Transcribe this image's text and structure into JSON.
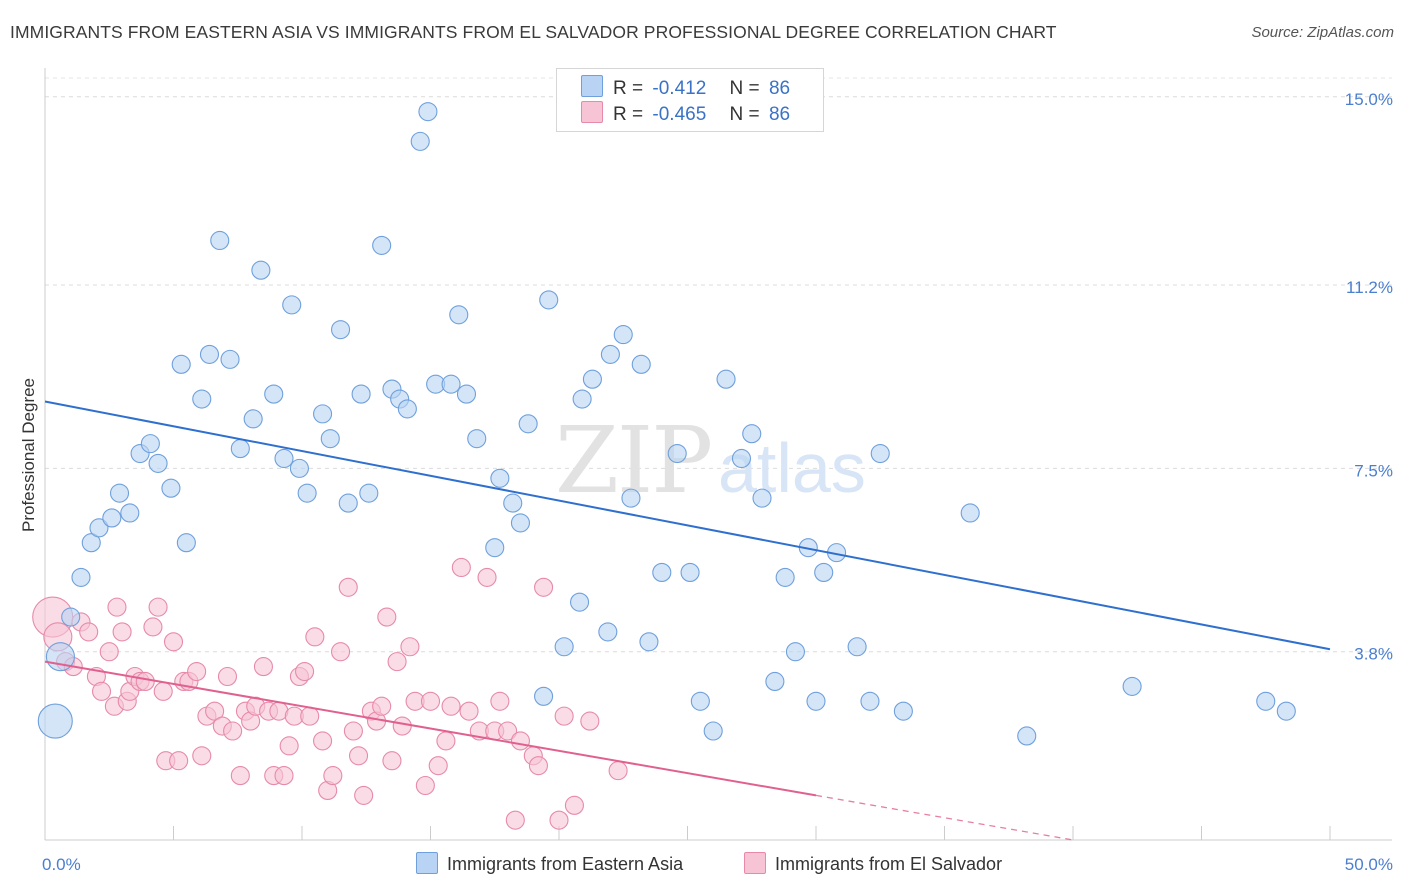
{
  "header": {
    "title": "IMMIGRANTS FROM EASTERN ASIA VS IMMIGRANTS FROM EL SALVADOR PROFESSIONAL DEGREE CORRELATION CHART",
    "source": "Source: ZipAtlas.com"
  },
  "watermark": {
    "text_zip": "ZIP",
    "text_atlas": "atlas"
  },
  "colors": {
    "blue_fill": "#b8d3f4",
    "blue_stroke": "#6fa0dc",
    "blue_line": "#2f6fce",
    "pink_fill": "#f7c4d5",
    "pink_stroke": "#e78aaa",
    "pink_line": "#e0608f"
  },
  "legend": {
    "rows": [
      {
        "r_label": "R =",
        "r_value": "-0.412",
        "n_label": "N =",
        "n_value": "86"
      },
      {
        "r_label": "R =",
        "r_value": "-0.465",
        "n_label": "N =",
        "n_value": "86"
      }
    ],
    "series_names": [
      "Immigrants from Eastern Asia",
      "Immigrants from El Salvador"
    ]
  },
  "chart_data": {
    "type": "scatter",
    "title": "IMMIGRANTS FROM EASTERN ASIA VS IMMIGRANTS FROM EL SALVADOR PROFESSIONAL DEGREE CORRELATION CHART",
    "xlabel": "",
    "ylabel": "Professional Degree",
    "xlim": [
      0,
      50
    ],
    "ylim": [
      0,
      15.5
    ],
    "x_tick_labels": [
      "0.0%",
      "50.0%"
    ],
    "y_ticks": [
      3.8,
      7.5,
      11.2,
      15.0
    ],
    "y_tick_labels": [
      "3.8%",
      "7.5%",
      "11.2%",
      "15.0%"
    ],
    "grid": true,
    "legend_position": "top-center",
    "series": [
      {
        "name": "Immigrants from Eastern Asia",
        "trend": {
          "x": [
            0,
            50
          ],
          "y": [
            8.85,
            3.85
          ]
        },
        "points": [
          [
            0.4,
            2.4
          ],
          [
            1.0,
            4.5
          ],
          [
            0.6,
            3.7
          ],
          [
            1.4,
            5.3
          ],
          [
            1.8,
            6.0
          ],
          [
            2.1,
            6.3
          ],
          [
            2.6,
            6.5
          ],
          [
            2.9,
            7.0
          ],
          [
            3.3,
            6.6
          ],
          [
            3.7,
            7.8
          ],
          [
            4.1,
            8.0
          ],
          [
            4.4,
            7.6
          ],
          [
            4.9,
            7.1
          ],
          [
            5.3,
            9.6
          ],
          [
            5.5,
            6.0
          ],
          [
            6.1,
            8.9
          ],
          [
            6.4,
            9.8
          ],
          [
            6.8,
            12.1
          ],
          [
            7.2,
            9.7
          ],
          [
            7.6,
            7.9
          ],
          [
            8.1,
            8.5
          ],
          [
            8.4,
            11.5
          ],
          [
            8.9,
            9.0
          ],
          [
            9.3,
            7.7
          ],
          [
            9.6,
            10.8
          ],
          [
            9.9,
            7.5
          ],
          [
            10.2,
            7.0
          ],
          [
            10.8,
            8.6
          ],
          [
            11.1,
            8.1
          ],
          [
            11.5,
            10.3
          ],
          [
            11.8,
            6.8
          ],
          [
            12.3,
            9.0
          ],
          [
            12.6,
            7.0
          ],
          [
            13.1,
            12.0
          ],
          [
            13.5,
            9.1
          ],
          [
            13.8,
            8.9
          ],
          [
            14.1,
            8.7
          ],
          [
            14.6,
            14.1
          ],
          [
            14.9,
            14.7
          ],
          [
            15.2,
            9.2
          ],
          [
            15.8,
            9.2
          ],
          [
            16.1,
            10.6
          ],
          [
            16.4,
            9.0
          ],
          [
            16.8,
            8.1
          ],
          [
            17.5,
            5.9
          ],
          [
            17.7,
            7.3
          ],
          [
            18.2,
            6.8
          ],
          [
            18.5,
            6.4
          ],
          [
            18.8,
            8.4
          ],
          [
            19.4,
            2.9
          ],
          [
            19.6,
            10.9
          ],
          [
            20.2,
            3.9
          ],
          [
            20.8,
            4.8
          ],
          [
            20.9,
            8.9
          ],
          [
            21.3,
            9.3
          ],
          [
            21.9,
            4.2
          ],
          [
            22.0,
            9.8
          ],
          [
            22.5,
            10.2
          ],
          [
            22.8,
            6.9
          ],
          [
            23.2,
            9.6
          ],
          [
            23.5,
            4.0
          ],
          [
            24.0,
            5.4
          ],
          [
            24.6,
            7.8
          ],
          [
            25.1,
            5.4
          ],
          [
            25.5,
            2.8
          ],
          [
            26.0,
            2.2
          ],
          [
            26.5,
            9.3
          ],
          [
            27.1,
            7.7
          ],
          [
            27.5,
            8.2
          ],
          [
            27.9,
            6.9
          ],
          [
            28.4,
            3.2
          ],
          [
            28.8,
            5.3
          ],
          [
            29.2,
            3.8
          ],
          [
            29.7,
            5.9
          ],
          [
            30.0,
            2.8
          ],
          [
            30.3,
            5.4
          ],
          [
            30.8,
            5.8
          ],
          [
            31.6,
            3.9
          ],
          [
            32.1,
            2.8
          ],
          [
            32.5,
            7.8
          ],
          [
            33.4,
            2.6
          ],
          [
            36.0,
            6.6
          ],
          [
            38.2,
            2.1
          ],
          [
            42.3,
            3.1
          ],
          [
            47.5,
            2.8
          ],
          [
            48.3,
            2.6
          ]
        ]
      },
      {
        "name": "Immigrants from El Salvador",
        "trend": {
          "x": [
            0,
            30
          ],
          "y": [
            3.6,
            0.9
          ]
        },
        "trend_extension": {
          "x": [
            30,
            40
          ],
          "y": [
            0.9,
            0.0
          ]
        },
        "points": [
          [
            0.3,
            4.5
          ],
          [
            0.5,
            4.1
          ],
          [
            0.8,
            3.6
          ],
          [
            1.1,
            3.5
          ],
          [
            1.4,
            4.4
          ],
          [
            1.7,
            4.2
          ],
          [
            2.0,
            3.3
          ],
          [
            2.2,
            3.0
          ],
          [
            2.5,
            3.8
          ],
          [
            2.7,
            2.7
          ],
          [
            2.8,
            4.7
          ],
          [
            3.0,
            4.2
          ],
          [
            3.2,
            2.8
          ],
          [
            3.3,
            3.0
          ],
          [
            3.5,
            3.3
          ],
          [
            3.7,
            3.2
          ],
          [
            3.9,
            3.2
          ],
          [
            4.2,
            4.3
          ],
          [
            4.4,
            4.7
          ],
          [
            4.6,
            3.0
          ],
          [
            4.7,
            1.6
          ],
          [
            5.0,
            4.0
          ],
          [
            5.2,
            1.6
          ],
          [
            5.4,
            3.2
          ],
          [
            5.6,
            3.2
          ],
          [
            5.9,
            3.4
          ],
          [
            6.1,
            1.7
          ],
          [
            6.3,
            2.5
          ],
          [
            6.6,
            2.6
          ],
          [
            6.9,
            2.3
          ],
          [
            7.1,
            3.3
          ],
          [
            7.3,
            2.2
          ],
          [
            7.6,
            1.3
          ],
          [
            7.8,
            2.6
          ],
          [
            8.0,
            2.4
          ],
          [
            8.2,
            2.7
          ],
          [
            8.5,
            3.5
          ],
          [
            8.7,
            2.6
          ],
          [
            8.9,
            1.3
          ],
          [
            9.1,
            2.6
          ],
          [
            9.3,
            1.3
          ],
          [
            9.5,
            1.9
          ],
          [
            9.7,
            2.5
          ],
          [
            9.9,
            3.3
          ],
          [
            10.1,
            3.4
          ],
          [
            10.3,
            2.5
          ],
          [
            10.5,
            4.1
          ],
          [
            10.8,
            2.0
          ],
          [
            11.0,
            1.0
          ],
          [
            11.2,
            1.3
          ],
          [
            11.5,
            3.8
          ],
          [
            11.8,
            5.1
          ],
          [
            12.0,
            2.2
          ],
          [
            12.2,
            1.7
          ],
          [
            12.4,
            0.9
          ],
          [
            12.7,
            2.6
          ],
          [
            12.9,
            2.4
          ],
          [
            13.1,
            2.7
          ],
          [
            13.3,
            4.5
          ],
          [
            13.5,
            1.6
          ],
          [
            13.7,
            3.6
          ],
          [
            13.9,
            2.3
          ],
          [
            14.2,
            3.9
          ],
          [
            14.4,
            2.8
          ],
          [
            14.8,
            1.1
          ],
          [
            15.0,
            2.8
          ],
          [
            15.3,
            1.5
          ],
          [
            15.6,
            2.0
          ],
          [
            15.8,
            2.7
          ],
          [
            16.2,
            5.5
          ],
          [
            16.5,
            2.6
          ],
          [
            16.9,
            2.2
          ],
          [
            17.2,
            5.3
          ],
          [
            17.5,
            2.2
          ],
          [
            17.7,
            2.8
          ],
          [
            18.0,
            2.2
          ],
          [
            18.3,
            0.4
          ],
          [
            18.5,
            2.0
          ],
          [
            19.0,
            1.7
          ],
          [
            19.2,
            1.5
          ],
          [
            19.4,
            5.1
          ],
          [
            20.0,
            0.4
          ],
          [
            20.2,
            2.5
          ],
          [
            20.6,
            0.7
          ],
          [
            21.2,
            2.4
          ],
          [
            22.3,
            1.4
          ]
        ]
      }
    ]
  }
}
